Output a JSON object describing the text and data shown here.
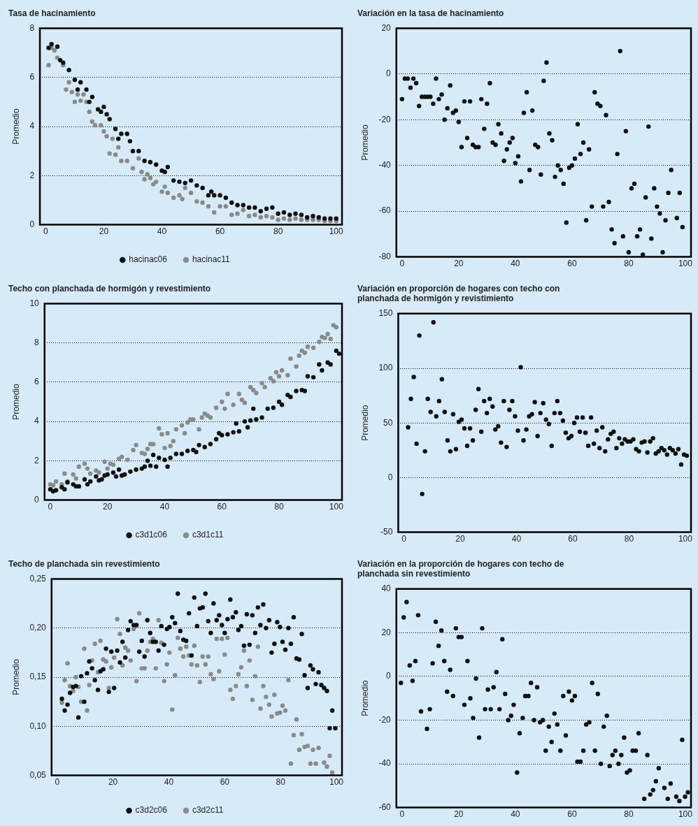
{
  "chart_data": [
    {
      "type": "scatter",
      "title": "Tasa de hacinamiento",
      "ylabel": "Promedio",
      "xlim": [
        -2,
        102
      ],
      "xticks": [
        0,
        20,
        40,
        60,
        80,
        100
      ],
      "ylim": [
        0,
        8
      ],
      "yticks": [
        0,
        2,
        4,
        6,
        8
      ],
      "grid": "y",
      "legend": "bottom",
      "marker": "circle",
      "series": [
        {
          "name": "hacinac06",
          "color": "#111111",
          "x": [
            1,
            2,
            4,
            5,
            6,
            8,
            10,
            11,
            12,
            14,
            15,
            16,
            18,
            19,
            20,
            21,
            22,
            24,
            25,
            26,
            28,
            29,
            30,
            32,
            34,
            36,
            38,
            40,
            41,
            42,
            44,
            46,
            48,
            50,
            52,
            54,
            56,
            57,
            58,
            60,
            62,
            64,
            66,
            68,
            70,
            72,
            74,
            76,
            78,
            80,
            82,
            84,
            86,
            88,
            90,
            92,
            94,
            96,
            98,
            100
          ],
          "values": [
            7.2,
            7.35,
            7.25,
            6.7,
            6.6,
            6.3,
            5.9,
            5.5,
            5.8,
            5.5,
            5.0,
            5.2,
            4.7,
            4.6,
            4.8,
            4.5,
            4.3,
            3.9,
            3.5,
            3.7,
            3.7,
            3.4,
            3.0,
            3.0,
            2.6,
            2.55,
            2.45,
            2.2,
            2.15,
            2.35,
            1.8,
            1.75,
            1.7,
            1.8,
            1.6,
            1.5,
            1.2,
            1.35,
            1.2,
            1.2,
            1.1,
            0.9,
            0.8,
            0.8,
            0.7,
            0.7,
            0.55,
            0.65,
            0.7,
            0.45,
            0.5,
            0.4,
            0.45,
            0.4,
            0.3,
            0.35,
            0.3,
            0.25,
            0.25,
            0.25
          ]
        },
        {
          "name": "hacinac11",
          "color": "#8a8a8a",
          "x": [
            1,
            2,
            3,
            4,
            6,
            7,
            8,
            9,
            10,
            11,
            12,
            13,
            14,
            15,
            16,
            17,
            19,
            20,
            21,
            22,
            23,
            24,
            25,
            26,
            28,
            30,
            32,
            33,
            34,
            35,
            36,
            37,
            38,
            40,
            41,
            42,
            44,
            46,
            47,
            48,
            50,
            52,
            54,
            56,
            58,
            60,
            62,
            64,
            66,
            68,
            70,
            72,
            74,
            76,
            78,
            80,
            82,
            84,
            86,
            88,
            90,
            92,
            94,
            96,
            98,
            100
          ],
          "values": [
            6.5,
            7.2,
            7.1,
            6.8,
            6.5,
            5.5,
            5.8,
            5.4,
            5.0,
            5.3,
            5.05,
            5.3,
            5.0,
            4.6,
            4.2,
            4.05,
            4.05,
            3.8,
            3.6,
            2.9,
            3.5,
            2.85,
            3.15,
            2.6,
            2.6,
            2.3,
            2.7,
            2.15,
            1.85,
            2.05,
            1.9,
            1.65,
            1.75,
            1.35,
            1.55,
            1.3,
            1.1,
            1.2,
            1.05,
            1.5,
            1.3,
            0.95,
            0.9,
            0.75,
            0.5,
            0.75,
            0.75,
            0.4,
            0.45,
            0.6,
            0.35,
            0.4,
            0.3,
            0.35,
            0.3,
            0.2,
            0.25,
            0.2,
            0.25,
            0.2,
            0.2,
            0.2,
            0.2,
            0.15,
            0.15,
            0.15
          ]
        }
      ]
    },
    {
      "type": "scatter",
      "title": "Variación en la tasa de hacinamiento",
      "ylabel": "Promedio",
      "xlim": [
        -2,
        102
      ],
      "xticks": [
        0,
        20,
        40,
        60,
        80,
        100
      ],
      "ylim": [
        -80,
        20
      ],
      "yticks": [
        -80,
        -60,
        -40,
        -20,
        0,
        20
      ],
      "grid": "y",
      "marker": "circle",
      "series": [
        {
          "color": "#111111",
          "x": [
            0,
            1,
            2,
            3,
            4,
            5,
            6,
            7,
            8,
            9,
            10,
            11,
            12,
            13,
            14,
            15,
            16,
            17,
            18,
            19,
            20,
            21,
            22,
            23,
            24,
            25,
            26,
            27,
            28,
            29,
            30,
            31,
            32,
            33,
            34,
            35,
            36,
            37,
            38,
            39,
            40,
            41,
            42,
            43,
            44,
            45,
            46,
            47,
            48,
            49,
            50,
            51,
            52,
            53,
            54,
            55,
            56,
            57,
            58,
            59,
            60,
            61,
            62,
            63,
            64,
            65,
            66,
            67,
            68,
            69,
            70,
            71,
            72,
            73,
            74,
            75,
            76,
            77,
            78,
            79,
            80,
            81,
            82,
            83,
            84,
            85,
            86,
            87,
            88,
            89,
            90,
            91,
            92,
            93,
            94,
            95,
            97,
            98,
            99
          ],
          "values": [
            -11,
            -2,
            -2,
            -6,
            -2,
            -4,
            -14,
            -10,
            -10,
            -10,
            -10,
            -13,
            -2,
            -11,
            -9,
            -20,
            -15,
            -5,
            -17,
            -16,
            -21,
            -32,
            -12,
            -28,
            -12,
            -31,
            -32,
            -32,
            -11,
            -24,
            -13,
            -4,
            -30,
            -31,
            -22,
            -26,
            -38,
            -33,
            -30,
            -28,
            -39,
            -36,
            -47,
            -17,
            -8,
            -42,
            -16,
            -31,
            -32,
            -44,
            -3,
            5,
            -26,
            -29,
            -45,
            -40,
            -42,
            -48,
            -65,
            -41,
            -40,
            -37,
            -22,
            -35,
            -30,
            -64,
            -33,
            -58,
            -8,
            -13,
            -14,
            -58,
            -18,
            -56,
            -68,
            -74,
            -35,
            10,
            -71,
            -25,
            -78,
            -50,
            -48,
            -71,
            -68,
            -79,
            -54,
            -23,
            -72,
            -50,
            -58,
            -61,
            -78,
            -64,
            -52,
            -42,
            -63,
            -52,
            -67
          ]
        }
      ]
    },
    {
      "type": "scatter",
      "title": "Techo con planchada de hormigón y revestimiento",
      "ylabel": "Promedio",
      "xlim": [
        -2,
        102
      ],
      "xticks": [
        0,
        20,
        40,
        60,
        80,
        100
      ],
      "ylim": [
        0,
        10
      ],
      "yticks": [
        0,
        2,
        4,
        6,
        8,
        10
      ],
      "grid": "y",
      "legend": "bottom",
      "marker": "circle",
      "series": [
        {
          "name": "c3d1c06",
          "color": "#111111",
          "x": [
            0,
            1,
            2,
            4,
            5,
            6,
            8,
            9,
            10,
            12,
            13,
            14,
            16,
            17,
            18,
            19,
            20,
            22,
            23,
            24,
            25,
            26,
            28,
            30,
            32,
            33,
            34,
            35,
            36,
            37,
            38,
            40,
            41,
            42,
            44,
            46,
            48,
            50,
            51,
            52,
            54,
            56,
            58,
            59,
            60,
            62,
            64,
            65,
            66,
            68,
            69,
            70,
            71,
            72,
            74,
            76,
            78,
            80,
            81,
            83,
            84,
            86,
            88,
            89,
            90,
            92,
            94,
            95,
            97,
            98,
            100,
            101
          ],
          "values": [
            0.55,
            0.45,
            0.5,
            0.65,
            0.55,
            0.9,
            0.8,
            0.7,
            0.7,
            1.05,
            0.8,
            0.95,
            1.2,
            1.0,
            1.05,
            1.25,
            1.3,
            1.4,
            1.2,
            1.55,
            1.25,
            1.3,
            1.45,
            1.55,
            1.6,
            1.7,
            2.0,
            1.75,
            2.3,
            1.7,
            2.15,
            2.05,
            1.7,
            2.15,
            2.35,
            2.35,
            2.5,
            2.55,
            2.45,
            2.8,
            2.7,
            2.85,
            3.1,
            3.4,
            3.3,
            3.35,
            3.45,
            3.9,
            3.5,
            4.0,
            3.7,
            4.05,
            4.65,
            4.1,
            4.2,
            4.65,
            4.7,
            5.0,
            4.85,
            5.35,
            5.25,
            5.55,
            5.6,
            5.55,
            6.3,
            6.25,
            6.9,
            6.6,
            7.0,
            6.9,
            7.6,
            7.45
          ]
        },
        {
          "name": "c3d1c11",
          "color": "#8a8a8a",
          "x": [
            0,
            1,
            2,
            4,
            5,
            6,
            8,
            9,
            10,
            12,
            13,
            14,
            16,
            17,
            19,
            20,
            21,
            22,
            24,
            25,
            27,
            29,
            30,
            32,
            33,
            34,
            35,
            36,
            38,
            39,
            40,
            41,
            42,
            43,
            44,
            46,
            47,
            48,
            49,
            50,
            52,
            53,
            54,
            55,
            56,
            58,
            60,
            61,
            62,
            64,
            66,
            67,
            68,
            70,
            71,
            72,
            74,
            75,
            77,
            78,
            79,
            80,
            81,
            83,
            84,
            86,
            87,
            88,
            89,
            90,
            92,
            94,
            95,
            96,
            97,
            98,
            99,
            100
          ],
          "values": [
            0.8,
            0.75,
            0.95,
            0.8,
            1.35,
            0.95,
            1.3,
            1.1,
            1.7,
            1.85,
            1.6,
            1.35,
            1.5,
            1.4,
            1.95,
            1.6,
            1.85,
            1.8,
            2.1,
            2.2,
            2.05,
            2.55,
            2.8,
            2.4,
            2.35,
            2.6,
            2.85,
            2.85,
            3.65,
            3.35,
            2.65,
            3.4,
            2.75,
            3.0,
            3.6,
            3.8,
            3.4,
            3.95,
            4.1,
            4.1,
            3.6,
            4.2,
            4.4,
            4.3,
            4.2,
            4.7,
            5.0,
            4.65,
            5.4,
            4.85,
            5.4,
            5.1,
            4.95,
            5.75,
            5.6,
            5.45,
            5.95,
            5.75,
            6.2,
            6.05,
            6.5,
            6.3,
            6.6,
            6.35,
            7.2,
            6.8,
            7.35,
            7.6,
            7.5,
            7.8,
            7.75,
            8.05,
            8.3,
            8.25,
            8.45,
            8.2,
            8.9,
            8.8
          ]
        }
      ]
    },
    {
      "type": "scatter",
      "title": "Variación en proporción de hogares con techo con planchada de hormigón y revistimiento",
      "ylabel": "Promedio",
      "xlim": [
        -2,
        102
      ],
      "xticks": [
        0,
        20,
        40,
        60,
        80,
        100
      ],
      "ylim": [
        -50,
        150
      ],
      "yticks": [
        -50,
        0,
        50,
        100,
        150
      ],
      "grid": "y",
      "marker": "circle",
      "series": [
        {
          "color": "#111111",
          "x": [
            1.5,
            2.5,
            3.5,
            4.5,
            5.5,
            6.5,
            7.5,
            8.5,
            9.5,
            10.5,
            11.5,
            12.5,
            13.5,
            14.5,
            15.5,
            16.5,
            17.5,
            18.5,
            19.5,
            20.5,
            21.5,
            22.5,
            23.5,
            24.5,
            25.5,
            26.5,
            27.5,
            28.5,
            29.5,
            30.5,
            31.5,
            32.5,
            33.5,
            34.5,
            35.5,
            36.5,
            37.5,
            38.5,
            39.5,
            40.5,
            41.5,
            42.5,
            43.5,
            44.5,
            45.5,
            46.5,
            47.5,
            48.5,
            49.5,
            50.5,
            51.5,
            52.5,
            53.5,
            54.5,
            55.5,
            56.5,
            57.5,
            58.5,
            59.5,
            60.5,
            61.5,
            62.5,
            63.5,
            64.5,
            65.5,
            66.5,
            67.5,
            68.5,
            69.5,
            70.5,
            71.5,
            72.5,
            73.5,
            74.5,
            75.5,
            76.5,
            77.5,
            78.5,
            79.5,
            80.5,
            81.5,
            82.5,
            83.5,
            84.5,
            85.5,
            86.5,
            87.5,
            88.5,
            89.5,
            90.5,
            91.5,
            92.5,
            93.5,
            94.5,
            95.5,
            96.5,
            97.5,
            98.5,
            99.5,
            100.5
          ],
          "values": [
            46,
            72,
            92,
            31,
            130,
            -15,
            24,
            72,
            60,
            142,
            56,
            70,
            90,
            60,
            34,
            24,
            58,
            26,
            51,
            53,
            45,
            29,
            45,
            34,
            62,
            81,
            42,
            70,
            59,
            72,
            65,
            44,
            47,
            32,
            70,
            28,
            62,
            70,
            56,
            43,
            101,
            34,
            44,
            56,
            58,
            69,
            38,
            59,
            68,
            53,
            49,
            29,
            59,
            70,
            59,
            52,
            41,
            36,
            38,
            50,
            55,
            42,
            55,
            41,
            29,
            55,
            31,
            43,
            27,
            46,
            24,
            35,
            40,
            42,
            27,
            36,
            31,
            35,
            33,
            33,
            35,
            26,
            24,
            32,
            33,
            23,
            33,
            36,
            22,
            24,
            27,
            25,
            21,
            27,
            25,
            22,
            26,
            12,
            21,
            20
          ]
        }
      ]
    },
    {
      "type": "scatter",
      "title": "Techo de planchada sin revestimiento",
      "ylabel": "Promedio",
      "xlim": [
        -2,
        102
      ],
      "xticks": [
        0,
        20,
        40,
        60,
        80,
        100
      ],
      "ylim": [
        0.05,
        0.25
      ],
      "yticks": [
        {
          "value": 0.05,
          "label": "0,05"
        },
        {
          "value": 0.1,
          "label": "0,10"
        },
        {
          "value": 0.15,
          "label": "0,15"
        },
        {
          "value": 0.2,
          "label": "0,20"
        },
        {
          "value": 0.25,
          "label": "0,25"
        }
      ],
      "grid": "y",
      "legend": "bottom",
      "marker": "circle",
      "x": [
        1.7,
        2.7,
        3.7,
        4.6,
        5.7,
        6.7,
        7.6,
        8.6,
        9.7,
        10.7,
        11.5,
        12.5,
        13.5,
        14.6,
        15.5,
        16.5,
        17.5,
        18.5,
        19.4,
        20.4,
        21.5,
        22.5,
        23.4,
        24.4,
        25.4,
        26.3,
        27.4,
        28.4,
        29.4,
        30.3,
        31.3,
        32.3,
        33.3,
        34.3,
        35.3,
        36.3,
        37.3,
        38.3,
        39.3,
        40.2,
        41.2,
        42.2,
        43.2,
        44.1,
        45.2,
        46.2,
        47.2,
        48.1,
        49.1,
        50.1,
        51.1,
        52.1,
        53.1,
        54.1,
        55,
        56,
        57.1,
        58,
        59,
        60,
        61,
        62,
        62.9,
        64,
        64.9,
        65.9,
        66.9,
        67.9,
        68.9,
        69.9,
        70.9,
        71.9,
        72.8,
        73.8,
        74.8,
        75.9,
        76.8,
        77.8,
        78.8,
        79.8,
        80.7,
        81.7,
        82.8,
        83.7,
        84.7,
        85.7,
        86.7,
        87.6,
        88.6,
        89.7,
        90.7,
        91.6,
        92.6,
        93.6,
        94.6,
        95.6,
        96.6,
        97.6,
        98.5,
        99.6
      ],
      "series": [
        {
          "name": "c3d2c06",
          "color": "#111111",
          "values": [
            0.128,
            0.116,
            0.122,
            0.134,
            0.14,
            0.141,
            0.109,
            0.151,
            0.125,
            0.154,
            0.166,
            0.159,
            0.147,
            0.137,
            0.156,
            0.158,
            0.179,
            0.135,
            0.176,
            0.139,
            0.177,
            0.165,
            0.186,
            0.17,
            0.198,
            0.207,
            0.203,
            0.203,
            0.176,
            0.187,
            0.171,
            0.208,
            0.195,
            0.186,
            0.186,
            0.177,
            0.202,
            0.183,
            0.199,
            0.201,
            0.211,
            0.205,
            0.235,
            0.197,
            0.188,
            0.187,
            0.215,
            0.172,
            0.231,
            0.202,
            0.22,
            0.221,
            0.235,
            0.207,
            0.195,
            0.225,
            0.208,
            0.213,
            0.203,
            0.195,
            0.209,
            0.229,
            0.211,
            0.216,
            0.198,
            0.202,
            0.182,
            0.214,
            0.183,
            0.213,
            0.195,
            0.221,
            0.203,
            0.224,
            0.2,
            0.208,
            0.175,
            0.184,
            0.206,
            0.201,
            0.186,
            0.178,
            0.2,
            0.184,
            0.211,
            0.169,
            0.168,
            0.194,
            0.152,
            0.139,
            0.162,
            0.158,
            0.143,
            0.155,
            0.142,
            0.139,
            0.136,
            0.098,
            0.116,
            0.098
          ]
        },
        {
          "name": "c3d2c11",
          "color": "#8a8a8a",
          "values": [
            0.124,
            0.147,
            0.164,
            0.141,
            0.136,
            0.15,
            0.14,
            0.125,
            0.179,
            0.116,
            0.142,
            0.167,
            0.184,
            0.155,
            0.187,
            0.168,
            0.166,
            0.139,
            0.16,
            0.17,
            0.209,
            0.194,
            0.162,
            0.18,
            0.177,
            0.167,
            0.199,
            0.146,
            0.215,
            0.159,
            0.159,
            0.177,
            0.186,
            0.189,
            0.159,
            0.208,
            0.185,
            0.146,
            0.163,
            0.175,
            0.117,
            0.152,
            0.19,
            0.179,
            0.171,
            0.181,
            0.172,
            0.163,
            0.182,
            0.162,
            0.145,
            0.171,
            0.163,
            0.171,
            0.153,
            0.148,
            0.189,
            0.156,
            0.189,
            0.173,
            0.19,
            0.137,
            0.128,
            0.141,
            0.153,
            0.16,
            0.177,
            0.141,
            0.167,
            0.127,
            0.151,
            0.181,
            0.118,
            0.141,
            0.13,
            0.122,
            0.11,
            0.132,
            0.113,
            0.114,
            0.121,
            0.116,
            0.147,
            0.062,
            0.091,
            0.107,
            0.076,
            0.092,
            0.079,
            0.08,
            0.062,
            0.076,
            0.062,
            0.078,
            null,
            0.063,
            0.059,
            0.07,
            0.053,
            null
          ]
        }
      ]
    },
    {
      "type": "scatter",
      "title": "Variación en la proporción de hogares con techo de planchada sin revestimiento",
      "ylabel": "Promedio",
      "xlim": [
        -2,
        102
      ],
      "xticks": [
        0,
        20,
        40,
        60,
        80,
        100
      ],
      "ylim": [
        -60,
        40
      ],
      "yticks": [
        -60,
        -40,
        -20,
        0,
        20,
        40
      ],
      "grid": "y",
      "marker": "circle",
      "series": [
        {
          "color": "#111111",
          "x": [
            -0.4,
            0.6,
            1.6,
            2.7,
            3.7,
            4.7,
            5.7,
            6.7,
            8.8,
            9.8,
            10.8,
            11.9,
            12.9,
            13.9,
            14.9,
            15.9,
            17,
            18,
            19,
            20,
            21,
            22,
            23.1,
            24.1,
            25.1,
            26.1,
            27.2,
            28.3,
            29.3,
            30.3,
            31.3,
            32.3,
            33.3,
            34.4,
            35.4,
            36.4,
            37.5,
            38.5,
            39.4,
            40.6,
            41.5,
            42.6,
            43.5,
            44.6,
            45.5,
            46.6,
            47.7,
            48.7,
            49.7,
            50.7,
            51.8,
            52.8,
            53.8,
            54.8,
            55.9,
            56.9,
            57.8,
            58.9,
            60,
            61,
            61.9,
            63,
            64,
            65,
            66.1,
            67.1,
            68.1,
            69.1,
            70.2,
            71.2,
            72.3,
            73.3,
            74.3,
            75.3,
            76.4,
            77.4,
            78.4,
            79.4,
            80.4,
            81.4,
            82.5,
            83.5,
            85.5,
            86.6,
            87.6,
            88.6,
            89.6,
            90.6,
            92.6,
            93.8,
            94.8,
            96.8,
            97.9,
            98.9,
            99.9,
            100.9
          ],
          "values": [
            -3,
            27,
            34,
            5,
            -2,
            7,
            28,
            -16,
            -24,
            -15,
            6,
            25,
            14,
            21,
            7,
            -7,
            3,
            -9,
            22,
            18,
            18,
            -13,
            7,
            -10,
            -19,
            -1,
            -28,
            22,
            -15,
            -6,
            -15,
            -5,
            2,
            -15,
            17,
            -8,
            -20,
            -18,
            -13,
            -44,
            -26,
            -19,
            -9,
            -9,
            -3,
            -20,
            -5,
            -21,
            -20,
            -34,
            -23,
            -30,
            -17,
            -22,
            -34,
            -9,
            -27,
            -7,
            -11,
            -9,
            -39,
            -39,
            -34,
            -22,
            -21,
            -3,
            -34,
            -8,
            -40,
            -23,
            -18,
            -41,
            -36,
            -34,
            -40,
            -36,
            -28,
            -44,
            -43,
            -34,
            -34,
            -26,
            -56,
            -36,
            -54,
            -52,
            -48,
            -42,
            -51,
            -56,
            -49,
            -55,
            -57,
            -29,
            -55,
            -53
          ]
        }
      ]
    }
  ]
}
